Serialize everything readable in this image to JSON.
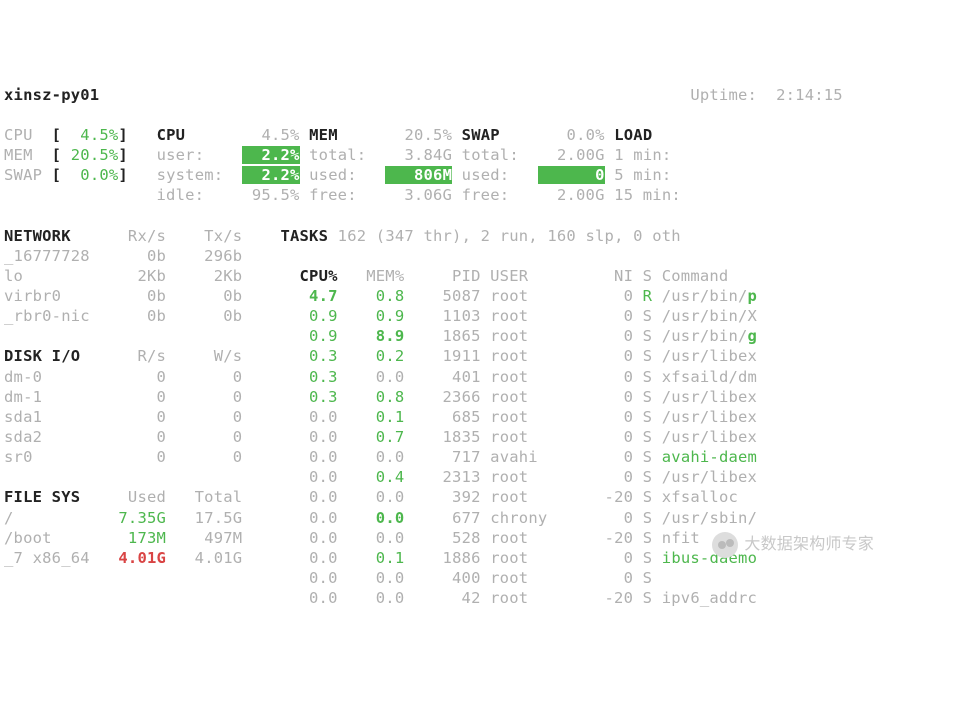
{
  "host": "xinsz-py01",
  "uptime_label": "Uptime:",
  "uptime_value": "2:14:15",
  "bars": {
    "cpu": {
      "label": "CPU",
      "value": " 4.5%"
    },
    "mem": {
      "label": "MEM",
      "value": "20.5%"
    },
    "swap": {
      "label": "SWAP",
      "value": " 0.0%"
    }
  },
  "cpu": {
    "title": "CPU",
    "total": "4.5%",
    "user_k": "user:",
    "user_v": "2.2%",
    "sys_k": "system:",
    "sys_v": "2.2%",
    "idle_k": "idle:",
    "idle_v": "95.5%"
  },
  "mem": {
    "title": "MEM",
    "total_pct": "20.5%",
    "total_k": "total:",
    "total_v": "3.84G",
    "used_k": "used:",
    "used_v": "806M",
    "free_k": "free:",
    "free_v": "3.06G"
  },
  "swap": {
    "title": "SWAP",
    "total_pct": "0.0%",
    "total_k": "total:",
    "total_v": "2.00G",
    "used_k": "used:",
    "used_v": "0",
    "free_k": "free:",
    "free_v": "2.00G"
  },
  "load": {
    "title": "LOAD",
    "m1": "1 min:",
    "m5": "5 min:",
    "m15": "15 min:"
  },
  "network": {
    "title": "NETWORK",
    "h_rx": "Rx/s",
    "h_tx": "Tx/s",
    "rows": [
      {
        "if": "_16777728",
        "rx": "0b",
        "tx": "296b"
      },
      {
        "if": "lo",
        "rx": "2Kb",
        "tx": "2Kb"
      },
      {
        "if": "virbr0",
        "rx": "0b",
        "tx": "0b"
      },
      {
        "if": "_rbr0-nic",
        "rx": "0b",
        "tx": "0b"
      }
    ]
  },
  "tasks": {
    "title": "TASKS",
    "summary": "162 (347 thr), 2 run, 160 slp, 0 oth",
    "h_cpu": "CPU%",
    "h_mem": "MEM%",
    "h_pid": "PID",
    "h_user": "USER",
    "h_ni": "NI",
    "h_s": "S",
    "h_cmd": "Command"
  },
  "disk": {
    "title": "DISK I/O",
    "h_r": "R/s",
    "h_w": "W/s",
    "rows": [
      {
        "d": "dm-0",
        "r": "0",
        "w": "0"
      },
      {
        "d": "dm-1",
        "r": "0",
        "w": "0"
      },
      {
        "d": "sda1",
        "r": "0",
        "w": "0"
      },
      {
        "d": "sda2",
        "r": "0",
        "w": "0"
      },
      {
        "d": "sr0",
        "r": "0",
        "w": "0"
      }
    ]
  },
  "fs": {
    "title": "FILE SYS",
    "h_used": "Used",
    "h_total": "Total",
    "rows": [
      {
        "m": "/",
        "used": "7.35G",
        "total": "17.5G",
        "c": "green"
      },
      {
        "m": "/boot",
        "used": "173M",
        "total": "497M",
        "c": "green"
      },
      {
        "m": "_7 x86_64",
        "used": "4.01G",
        "total": "4.01G",
        "c": "red"
      }
    ]
  },
  "procs": [
    {
      "cpu": "4.7",
      "mem": "0.8",
      "pid": "5087",
      "user": "root",
      "ni": "0",
      "s": "R",
      "cmd": "/usr/bin/",
      "cmdE": "p",
      "cpu_c": "greenB",
      "mem_c": "green",
      "s_c": "green",
      "cmdE_c": "greenB"
    },
    {
      "cpu": "0.9",
      "mem": "0.9",
      "pid": "1103",
      "user": "root",
      "ni": "0",
      "s": "S",
      "cmd": "/usr/bin/",
      "cmdE": "X",
      "cpu_c": "green",
      "mem_c": "green",
      "s_c": "dim",
      "cmdE_c": "dim"
    },
    {
      "cpu": "0.9",
      "mem": "8.9",
      "pid": "1865",
      "user": "root",
      "ni": "0",
      "s": "S",
      "cmd": "/usr/bin/",
      "cmdE": "g",
      "cpu_c": "green",
      "mem_c": "greenB",
      "s_c": "dim",
      "cmdE_c": "greenB"
    },
    {
      "cpu": "0.3",
      "mem": "0.2",
      "pid": "1911",
      "user": "root",
      "ni": "0",
      "s": "S",
      "cmd": "/usr/libex",
      "cmdE": "",
      "cpu_c": "green",
      "mem_c": "green",
      "s_c": "dim",
      "cmdE_c": ""
    },
    {
      "cpu": "0.3",
      "mem": "0.0",
      "pid": "401",
      "user": "root",
      "ni": "0",
      "s": "S",
      "cmd": "xfsaild/dm",
      "cmdE": "",
      "cpu_c": "green",
      "mem_c": "dim",
      "s_c": "dim",
      "cmdE_c": ""
    },
    {
      "cpu": "0.3",
      "mem": "0.8",
      "pid": "2366",
      "user": "root",
      "ni": "0",
      "s": "S",
      "cmd": "/usr/libex",
      "cmdE": "",
      "cpu_c": "green",
      "mem_c": "green",
      "s_c": "dim",
      "cmdE_c": ""
    },
    {
      "cpu": "0.0",
      "mem": "0.1",
      "pid": "685",
      "user": "root",
      "ni": "0",
      "s": "S",
      "cmd": "/usr/libex",
      "cmdE": "",
      "cpu_c": "dim",
      "mem_c": "green",
      "s_c": "dim",
      "cmdE_c": ""
    },
    {
      "cpu": "0.0",
      "mem": "0.7",
      "pid": "1835",
      "user": "root",
      "ni": "0",
      "s": "S",
      "cmd": "/usr/libex",
      "cmdE": "",
      "cpu_c": "dim",
      "mem_c": "green",
      "s_c": "dim",
      "cmdE_c": ""
    },
    {
      "cpu": "0.0",
      "mem": "0.0",
      "pid": "717",
      "user": "avahi",
      "ni": "0",
      "s": "S",
      "cmd": "",
      "cmdE": "avahi-daem",
      "cpu_c": "dim",
      "mem_c": "dim",
      "s_c": "dim",
      "cmdE_c": "green"
    },
    {
      "cpu": "0.0",
      "mem": "0.4",
      "pid": "2313",
      "user": "root",
      "ni": "0",
      "s": "S",
      "cmd": "/usr/libex",
      "cmdE": "",
      "cpu_c": "dim",
      "mem_c": "green",
      "s_c": "dim",
      "cmdE_c": ""
    },
    {
      "cpu": "0.0",
      "mem": "0.0",
      "pid": "392",
      "user": "root",
      "ni": "-20",
      "s": "S",
      "cmd": "xfsalloc",
      "cmdE": "",
      "cpu_c": "dim",
      "mem_c": "dim",
      "s_c": "dim",
      "cmdE_c": ""
    },
    {
      "cpu": "0.0",
      "mem": "0.0",
      "pid": "677",
      "user": "chrony",
      "ni": "0",
      "s": "S",
      "cmd": "/usr/sbin/",
      "cmdE": "",
      "cpu_c": "dim",
      "mem_c": "greenB",
      "s_c": "dim",
      "cmdE_c": ""
    },
    {
      "cpu": "0.0",
      "mem": "0.0",
      "pid": "528",
      "user": "root",
      "ni": "-20",
      "s": "S",
      "cmd": "nfit",
      "cmdE": "",
      "cpu_c": "dim",
      "mem_c": "dim",
      "s_c": "dim",
      "cmdE_c": ""
    },
    {
      "cpu": "0.0",
      "mem": "0.1",
      "pid": "1886",
      "user": "root",
      "ni": "0",
      "s": "S",
      "cmd": "",
      "cmdE": "ibus-daemo",
      "cpu_c": "dim",
      "mem_c": "green",
      "s_c": "dim",
      "cmdE_c": "green"
    },
    {
      "cpu": "0.0",
      "mem": "0.0",
      "pid": "400",
      "user": "root",
      "ni": "0",
      "s": "S",
      "cmd": "",
      "cmdE": "",
      "cpu_c": "dim",
      "mem_c": "dim",
      "s_c": "dim",
      "cmdE_c": ""
    },
    {
      "cpu": "0.0",
      "mem": "0.0",
      "pid": "42",
      "user": "root",
      "ni": "-20",
      "s": "S",
      "cmd": "ipv6_addrc",
      "cmdE": "",
      "cpu_c": "dim",
      "mem_c": "dim",
      "s_c": "dim",
      "cmdE_c": ""
    }
  ],
  "watermark": "大数据架构师专家"
}
